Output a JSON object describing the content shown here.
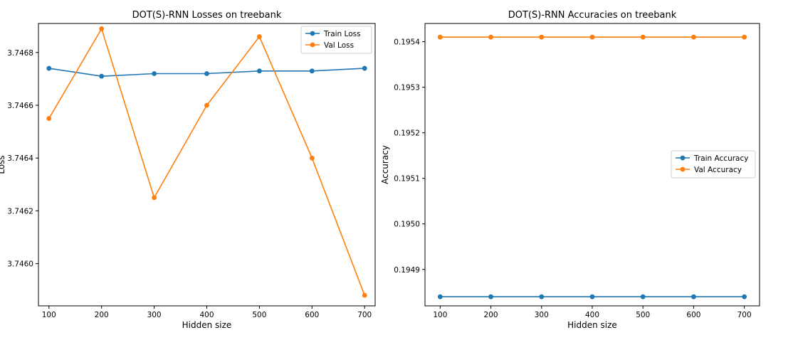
{
  "chart_data": [
    {
      "type": "line",
      "title": "DOT(S)-RNN Losses on treebank",
      "xlabel": "Hidden size",
      "ylabel": "Loss",
      "x": [
        100,
        200,
        300,
        400,
        500,
        600,
        700
      ],
      "xticks": [
        "100",
        "200",
        "300",
        "400",
        "500",
        "600",
        "700"
      ],
      "yticks": [
        3.746,
        3.7462,
        3.7464,
        3.7466,
        3.7468
      ],
      "ytick_labels": [
        "3.7460",
        "3.7462",
        "3.7464",
        "3.7466",
        "3.7468"
      ],
      "xlim": [
        80,
        720
      ],
      "ylim": [
        3.74584,
        3.74691
      ],
      "legend_position": "upper right",
      "grid": false,
      "series": [
        {
          "name": "Train Loss",
          "color": "#1f77b4",
          "values": [
            3.74674,
            3.74671,
            3.74672,
            3.74672,
            3.74673,
            3.74673,
            3.74674
          ]
        },
        {
          "name": "Val Loss",
          "color": "#ff7f0e",
          "values": [
            3.74655,
            3.74689,
            3.74625,
            3.7466,
            3.74686,
            3.7464,
            3.74588
          ]
        }
      ]
    },
    {
      "type": "line",
      "title": "DOT(S)-RNN Accuracies on treebank",
      "xlabel": "Hidden size",
      "ylabel": "Accuracy",
      "x": [
        100,
        200,
        300,
        400,
        500,
        600,
        700
      ],
      "xticks": [
        "100",
        "200",
        "300",
        "400",
        "500",
        "600",
        "700"
      ],
      "yticks": [
        0.1949,
        0.195,
        0.1951,
        0.1952,
        0.1953,
        0.1954
      ],
      "ytick_labels": [
        "0.1949",
        "0.1950",
        "0.1951",
        "0.1952",
        "0.1953",
        "0.1954"
      ],
      "xlim": [
        70,
        730
      ],
      "ylim": [
        0.19482,
        0.19544
      ],
      "legend_position": "center right",
      "grid": false,
      "series": [
        {
          "name": "Train Accuracy",
          "color": "#1f77b4",
          "values": [
            0.19484,
            0.19484,
            0.19484,
            0.19484,
            0.19484,
            0.19484,
            0.19484
          ]
        },
        {
          "name": "Val Accuracy",
          "color": "#ff7f0e",
          "values": [
            0.19541,
            0.19541,
            0.19541,
            0.19541,
            0.19541,
            0.19541,
            0.19541
          ]
        }
      ]
    }
  ]
}
